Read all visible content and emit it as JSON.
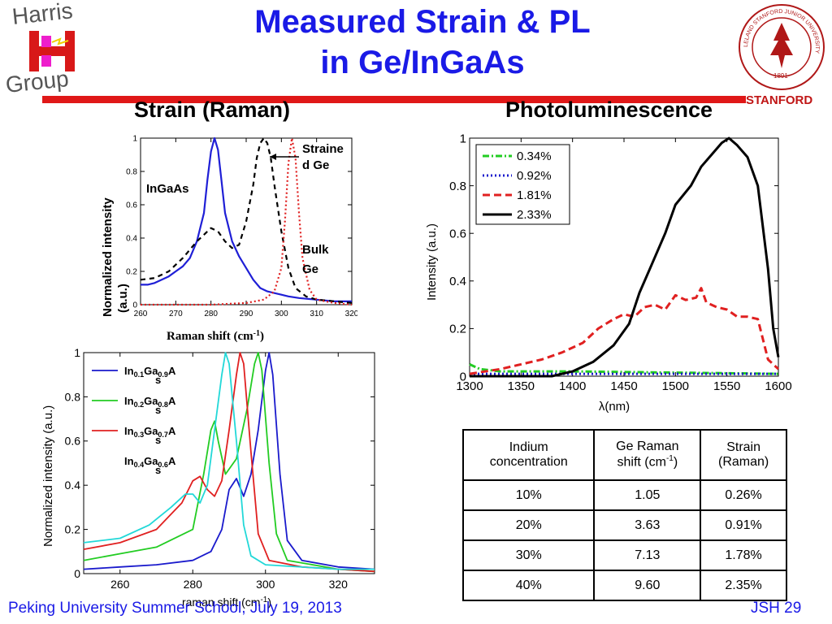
{
  "slide": {
    "title_line1": "Measured Strain & PL",
    "title_line2": "in Ge/InGaAs",
    "logo_left_line1": "Harris",
    "logo_left_line2": "Group",
    "seal_text": "STANFORD",
    "seal_ring_text": "LELAND STANFORD JUNIOR UNIVERSITY",
    "seal_year": "1891",
    "heading_left": "Strain (Raman)",
    "heading_right": "Photoluminescence",
    "footer_left": "Peking University Summer School, July 19, 2013",
    "footer_right": "JSH 29",
    "colors": {
      "title": "#1a1ae6",
      "bar": "#e01818",
      "stanford": "#c01616"
    }
  },
  "chart_data": [
    {
      "type": "line",
      "xlabel_main": "Raman shift (cm",
      "xlabel_sup": "-1",
      "xlabel_end": ")",
      "ylabel_line1": "Normalized intensity",
      "ylabel_line2": "(a.u.)",
      "xlim": [
        260,
        320
      ],
      "ylim": [
        0,
        1
      ],
      "xticks": [
        "260",
        "270",
        "280",
        "290",
        "300",
        "310",
        "320"
      ],
      "yticks": [
        "0",
        "0.2",
        "0.4",
        "0.6",
        "0.8",
        "1"
      ],
      "annotations": {
        "ingaas": "InGaAs",
        "strained_1": "Straine",
        "strained_2": "d Ge",
        "bulk_1": "Bulk",
        "bulk_2": "Ge"
      },
      "series": [
        {
          "color": "#1f1fd6",
          "dash": "",
          "points": [
            [
              260,
              0.12
            ],
            [
              262,
              0.12
            ],
            [
              264,
              0.13
            ],
            [
              266,
              0.15
            ],
            [
              268,
              0.17
            ],
            [
              270,
              0.2
            ],
            [
              272,
              0.23
            ],
            [
              274,
              0.28
            ],
            [
              276,
              0.38
            ],
            [
              278,
              0.55
            ],
            [
              279,
              0.75
            ],
            [
              280,
              0.92
            ],
            [
              281,
              1.0
            ],
            [
              282,
              0.93
            ],
            [
              283,
              0.74
            ],
            [
              284,
              0.55
            ],
            [
              286,
              0.38
            ],
            [
              288,
              0.29
            ],
            [
              290,
              0.22
            ],
            [
              292,
              0.15
            ],
            [
              294,
              0.1
            ],
            [
              296,
              0.08
            ],
            [
              298,
              0.07
            ],
            [
              300,
              0.06
            ],
            [
              302,
              0.05
            ],
            [
              305,
              0.04
            ],
            [
              310,
              0.03
            ],
            [
              315,
              0.02
            ],
            [
              320,
              0.02
            ]
          ]
        },
        {
          "color": "#000000",
          "dash": "6,5",
          "points": [
            [
              260,
              0.15
            ],
            [
              264,
              0.16
            ],
            [
              268,
              0.2
            ],
            [
              272,
              0.28
            ],
            [
              276,
              0.38
            ],
            [
              278,
              0.42
            ],
            [
              280,
              0.46
            ],
            [
              282,
              0.44
            ],
            [
              284,
              0.38
            ],
            [
              286,
              0.34
            ],
            [
              288,
              0.36
            ],
            [
              290,
              0.5
            ],
            [
              292,
              0.72
            ],
            [
              293,
              0.88
            ],
            [
              294,
              0.97
            ],
            [
              295,
              1.0
            ],
            [
              296,
              0.97
            ],
            [
              297,
              0.88
            ],
            [
              298,
              0.72
            ],
            [
              300,
              0.44
            ],
            [
              302,
              0.22
            ],
            [
              304,
              0.1
            ],
            [
              307,
              0.05
            ],
            [
              310,
              0.03
            ],
            [
              320,
              0.01
            ]
          ]
        },
        {
          "color": "#e02020",
          "dash": "2,3",
          "points": [
            [
              260,
              0.0
            ],
            [
              280,
              0.0
            ],
            [
              290,
              0.01
            ],
            [
              295,
              0.03
            ],
            [
              298,
              0.08
            ],
            [
              300,
              0.22
            ],
            [
              301,
              0.5
            ],
            [
              302,
              0.85
            ],
            [
              303,
              1.0
            ],
            [
              304,
              0.88
            ],
            [
              305,
              0.55
            ],
            [
              306,
              0.28
            ],
            [
              308,
              0.09
            ],
            [
              310,
              0.03
            ],
            [
              315,
              0.01
            ],
            [
              320,
              0.0
            ]
          ]
        }
      ]
    },
    {
      "type": "line",
      "xlabel": "λ(nm)",
      "ylabel": "Intensity (a.u.)",
      "xlim": [
        1300,
        1600
      ],
      "ylim": [
        0,
        1
      ],
      "xticks": [
        "1300",
        "1350",
        "1400",
        "1450",
        "1500",
        "1550",
        "1600"
      ],
      "yticks": [
        "0",
        "0.2",
        "0.4",
        "0.6",
        "0.8",
        "1"
      ],
      "series": [
        {
          "name": "0.34%",
          "color": "#22cc22",
          "dash": "8,3,2,3",
          "points": [
            [
              1300,
              0.05
            ],
            [
              1310,
              0.03
            ],
            [
              1330,
              0.02
            ],
            [
              1400,
              0.02
            ],
            [
              1500,
              0.015
            ],
            [
              1600,
              0.01
            ]
          ]
        },
        {
          "name": "0.92%",
          "color": "#1a1acc",
          "dash": "2,3",
          "points": [
            [
              1300,
              0.01
            ],
            [
              1400,
              0.01
            ],
            [
              1500,
              0.01
            ],
            [
              1600,
              0.01
            ]
          ]
        },
        {
          "name": "1.81%",
          "color": "#e02020",
          "dash": "9,5",
          "points": [
            [
              1300,
              0.01
            ],
            [
              1330,
              0.03
            ],
            [
              1350,
              0.05
            ],
            [
              1370,
              0.07
            ],
            [
              1390,
              0.1
            ],
            [
              1410,
              0.14
            ],
            [
              1425,
              0.2
            ],
            [
              1440,
              0.24
            ],
            [
              1450,
              0.26
            ],
            [
              1460,
              0.25
            ],
            [
              1470,
              0.29
            ],
            [
              1480,
              0.3
            ],
            [
              1490,
              0.28
            ],
            [
              1500,
              0.34
            ],
            [
              1510,
              0.32
            ],
            [
              1520,
              0.33
            ],
            [
              1525,
              0.37
            ],
            [
              1530,
              0.31
            ],
            [
              1540,
              0.29
            ],
            [
              1550,
              0.28
            ],
            [
              1560,
              0.25
            ],
            [
              1570,
              0.25
            ],
            [
              1580,
              0.24
            ],
            [
              1590,
              0.07
            ],
            [
              1600,
              0.03
            ]
          ]
        },
        {
          "name": "2.33%",
          "color": "#000000",
          "dash": "",
          "points": [
            [
              1300,
              0.0
            ],
            [
              1380,
              0.0
            ],
            [
              1400,
              0.02
            ],
            [
              1420,
              0.06
            ],
            [
              1440,
              0.13
            ],
            [
              1455,
              0.22
            ],
            [
              1465,
              0.35
            ],
            [
              1475,
              0.45
            ],
            [
              1490,
              0.6
            ],
            [
              1500,
              0.72
            ],
            [
              1515,
              0.8
            ],
            [
              1525,
              0.88
            ],
            [
              1535,
              0.93
            ],
            [
              1545,
              0.98
            ],
            [
              1552,
              1.0
            ],
            [
              1560,
              0.97
            ],
            [
              1570,
              0.92
            ],
            [
              1580,
              0.8
            ],
            [
              1590,
              0.45
            ],
            [
              1595,
              0.2
            ],
            [
              1600,
              0.08
            ]
          ]
        }
      ]
    },
    {
      "type": "line",
      "xlabel_main": "raman shift (cm",
      "xlabel_sup": "-1",
      "xlabel_end": ")",
      "ylabel": "Normalized intensity (a.u.)",
      "xlim": [
        250,
        330
      ],
      "ylim": [
        0,
        1
      ],
      "xticks": [
        "260",
        "280",
        "300",
        "320"
      ],
      "yticks": [
        "0",
        "0.2",
        "0.4",
        "0.6",
        "0.8",
        "1"
      ],
      "series": [
        {
          "name": "In0.1Ga0.9As",
          "label": {
            "a": "In",
            "b": "0.1",
            "c": "Ga",
            "d": "0.9",
            "e": "A",
            "f": "s"
          },
          "color": "#1a1acc",
          "points": [
            [
              250,
              0.02
            ],
            [
              260,
              0.03
            ],
            [
              270,
              0.04
            ],
            [
              280,
              0.06
            ],
            [
              285,
              0.1
            ],
            [
              288,
              0.2
            ],
            [
              290,
              0.38
            ],
            [
              292,
              0.43
            ],
            [
              294,
              0.35
            ],
            [
              296,
              0.45
            ],
            [
              298,
              0.65
            ],
            [
              300,
              0.92
            ],
            [
              301,
              1.0
            ],
            [
              302,
              0.9
            ],
            [
              304,
              0.45
            ],
            [
              306,
              0.15
            ],
            [
              310,
              0.06
            ],
            [
              320,
              0.03
            ],
            [
              330,
              0.02
            ]
          ]
        },
        {
          "name": "In0.2Ga0.8As",
          "label": {
            "a": "In",
            "b": "0.2",
            "c": "Ga",
            "d": "0.8",
            "e": "A",
            "f": "s"
          },
          "color": "#22cc22",
          "points": [
            [
              250,
              0.06
            ],
            [
              260,
              0.09
            ],
            [
              270,
              0.12
            ],
            [
              280,
              0.2
            ],
            [
              283,
              0.45
            ],
            [
              285,
              0.65
            ],
            [
              286,
              0.69
            ],
            [
              287,
              0.6
            ],
            [
              289,
              0.45
            ],
            [
              292,
              0.52
            ],
            [
              295,
              0.75
            ],
            [
              297,
              0.95
            ],
            [
              298,
              1.0
            ],
            [
              299,
              0.92
            ],
            [
              301,
              0.5
            ],
            [
              303,
              0.18
            ],
            [
              306,
              0.06
            ],
            [
              320,
              0.02
            ],
            [
              330,
              0.01
            ]
          ]
        },
        {
          "name": "In0.3Ga0.7As",
          "label": {
            "a": "In",
            "b": "0.3",
            "c": "Ga",
            "d": "0.7",
            "e": "A",
            "f": "s"
          },
          "color": "#e02020",
          "points": [
            [
              250,
              0.11
            ],
            [
              260,
              0.14
            ],
            [
              270,
              0.2
            ],
            [
              277,
              0.32
            ],
            [
              280,
              0.42
            ],
            [
              282,
              0.44
            ],
            [
              284,
              0.38
            ],
            [
              286,
              0.35
            ],
            [
              288,
              0.42
            ],
            [
              290,
              0.65
            ],
            [
              292,
              0.9
            ],
            [
              293,
              1.0
            ],
            [
              294,
              0.95
            ],
            [
              296,
              0.55
            ],
            [
              298,
              0.18
            ],
            [
              301,
              0.06
            ],
            [
              310,
              0.03
            ],
            [
              330,
              0.01
            ]
          ]
        },
        {
          "name": "In0.4Ga0.6As",
          "label": {
            "a": "In",
            "b": "0.4",
            "c": "Ga",
            "d": "0.6",
            "e": "A",
            "f": "s"
          },
          "color": "#22d8d8",
          "points": [
            [
              250,
              0.14
            ],
            [
              260,
              0.16
            ],
            [
              268,
              0.22
            ],
            [
              274,
              0.3
            ],
            [
              278,
              0.36
            ],
            [
              280,
              0.36
            ],
            [
              282,
              0.32
            ],
            [
              284,
              0.4
            ],
            [
              286,
              0.65
            ],
            [
              288,
              0.9
            ],
            [
              289,
              1.0
            ],
            [
              290,
              0.95
            ],
            [
              292,
              0.6
            ],
            [
              294,
              0.22
            ],
            [
              296,
              0.08
            ],
            [
              300,
              0.04
            ],
            [
              320,
              0.02
            ],
            [
              330,
              0.02
            ]
          ]
        }
      ]
    },
    {
      "type": "table",
      "headers": [
        {
          "line1": "Indium",
          "line2": "concentration"
        },
        {
          "line1": "Ge Raman",
          "line2a": "shift (cm",
          "line2sup": "-1",
          "line2b": ")"
        },
        {
          "line1": "Strain",
          "line2": "(Raman)"
        }
      ],
      "rows": [
        [
          "10%",
          "1.05",
          "0.26%"
        ],
        [
          "20%",
          "3.63",
          "0.91%"
        ],
        [
          "30%",
          "7.13",
          "1.78%"
        ],
        [
          "40%",
          "9.60",
          "2.35%"
        ]
      ]
    }
  ]
}
